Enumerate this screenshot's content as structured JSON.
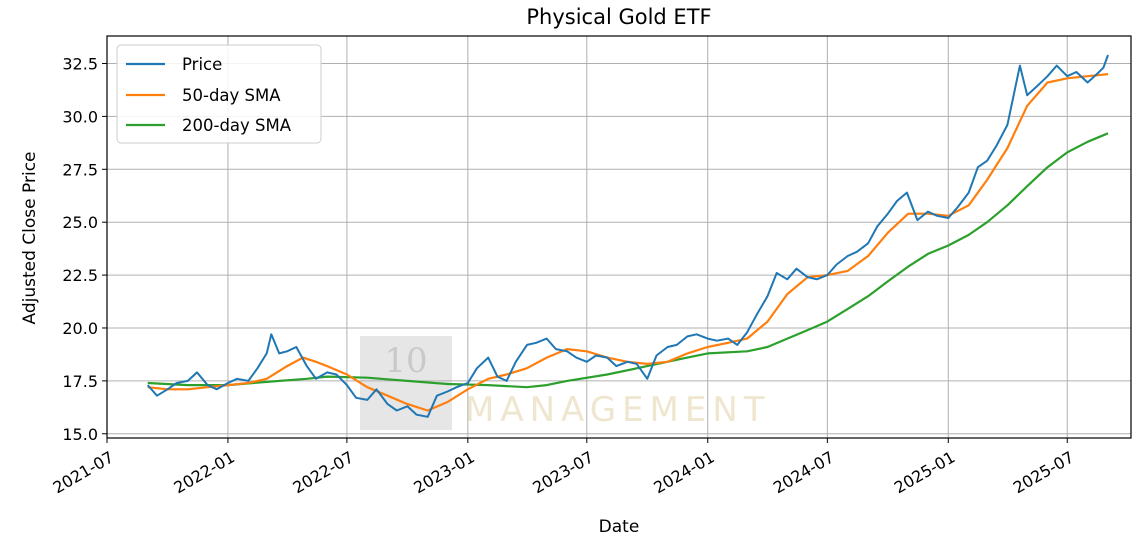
{
  "chart_data": {
    "type": "line",
    "title": "Physical Gold ETF",
    "xlabel": "Date",
    "ylabel": "Adjusted Close Price",
    "xlim": [
      "2021-07-01",
      "2025-10-06"
    ],
    "ylim": [
      14.8,
      33.8
    ],
    "x_ticks": [
      "2021-07",
      "2022-01",
      "2022-07",
      "2023-01",
      "2023-07",
      "2024-01",
      "2024-07",
      "2025-01",
      "2025-07"
    ],
    "y_ticks": [
      "15.0",
      "17.5",
      "20.0",
      "22.5",
      "25.0",
      "27.5",
      "30.0",
      "32.5"
    ],
    "grid": true,
    "legend_position": "upper-left",
    "series": [
      {
        "name": "Price",
        "color": "#1f77b4",
        "points": [
          [
            "2021-09-01",
            17.3
          ],
          [
            "2021-09-15",
            16.8
          ],
          [
            "2021-10-01",
            17.1
          ],
          [
            "2021-10-15",
            17.4
          ],
          [
            "2021-11-01",
            17.5
          ],
          [
            "2021-11-15",
            17.9
          ],
          [
            "2021-12-01",
            17.3
          ],
          [
            "2021-12-15",
            17.1
          ],
          [
            "2022-01-01",
            17.4
          ],
          [
            "2022-01-15",
            17.6
          ],
          [
            "2022-02-01",
            17.5
          ],
          [
            "2022-02-15",
            18.1
          ],
          [
            "2022-03-01",
            18.8
          ],
          [
            "2022-03-08",
            19.7
          ],
          [
            "2022-03-20",
            18.8
          ],
          [
            "2022-04-01",
            18.9
          ],
          [
            "2022-04-15",
            19.1
          ],
          [
            "2022-05-01",
            18.2
          ],
          [
            "2022-05-15",
            17.6
          ],
          [
            "2022-06-01",
            17.9
          ],
          [
            "2022-06-15",
            17.8
          ],
          [
            "2022-07-01",
            17.3
          ],
          [
            "2022-07-15",
            16.7
          ],
          [
            "2022-08-01",
            16.6
          ],
          [
            "2022-08-15",
            17.1
          ],
          [
            "2022-09-01",
            16.4
          ],
          [
            "2022-09-15",
            16.1
          ],
          [
            "2022-10-01",
            16.3
          ],
          [
            "2022-10-15",
            15.9
          ],
          [
            "2022-11-01",
            15.8
          ],
          [
            "2022-11-15",
            16.8
          ],
          [
            "2022-12-01",
            17.0
          ],
          [
            "2022-12-15",
            17.2
          ],
          [
            "2023-01-01",
            17.4
          ],
          [
            "2023-01-15",
            18.1
          ],
          [
            "2023-02-01",
            18.6
          ],
          [
            "2023-02-15",
            17.7
          ],
          [
            "2023-03-01",
            17.5
          ],
          [
            "2023-03-15",
            18.4
          ],
          [
            "2023-04-01",
            19.2
          ],
          [
            "2023-04-15",
            19.3
          ],
          [
            "2023-05-01",
            19.5
          ],
          [
            "2023-05-15",
            19.0
          ],
          [
            "2023-06-01",
            18.9
          ],
          [
            "2023-06-15",
            18.6
          ],
          [
            "2023-07-01",
            18.4
          ],
          [
            "2023-07-15",
            18.7
          ],
          [
            "2023-08-01",
            18.6
          ],
          [
            "2023-08-15",
            18.2
          ],
          [
            "2023-09-01",
            18.4
          ],
          [
            "2023-09-15",
            18.3
          ],
          [
            "2023-10-01",
            17.6
          ],
          [
            "2023-10-15",
            18.7
          ],
          [
            "2023-11-01",
            19.1
          ],
          [
            "2023-11-15",
            19.2
          ],
          [
            "2023-12-01",
            19.6
          ],
          [
            "2023-12-15",
            19.7
          ],
          [
            "2024-01-01",
            19.5
          ],
          [
            "2024-01-15",
            19.4
          ],
          [
            "2024-02-01",
            19.5
          ],
          [
            "2024-02-15",
            19.2
          ],
          [
            "2024-03-01",
            19.8
          ],
          [
            "2024-03-15",
            20.6
          ],
          [
            "2024-04-01",
            21.5
          ],
          [
            "2024-04-15",
            22.6
          ],
          [
            "2024-05-01",
            22.3
          ],
          [
            "2024-05-15",
            22.8
          ],
          [
            "2024-06-01",
            22.4
          ],
          [
            "2024-06-15",
            22.3
          ],
          [
            "2024-07-01",
            22.5
          ],
          [
            "2024-07-15",
            23.0
          ],
          [
            "2024-08-01",
            23.4
          ],
          [
            "2024-08-15",
            23.6
          ],
          [
            "2024-09-01",
            24.0
          ],
          [
            "2024-09-15",
            24.8
          ],
          [
            "2024-10-01",
            25.4
          ],
          [
            "2024-10-15",
            26.0
          ],
          [
            "2024-10-30",
            26.4
          ],
          [
            "2024-11-15",
            25.1
          ],
          [
            "2024-12-01",
            25.5
          ],
          [
            "2024-12-15",
            25.3
          ],
          [
            "2025-01-01",
            25.2
          ],
          [
            "2025-01-15",
            25.7
          ],
          [
            "2025-02-01",
            26.4
          ],
          [
            "2025-02-15",
            27.6
          ],
          [
            "2025-03-01",
            27.9
          ],
          [
            "2025-03-15",
            28.6
          ],
          [
            "2025-04-01",
            29.6
          ],
          [
            "2025-04-20",
            32.4
          ],
          [
            "2025-05-01",
            31.0
          ],
          [
            "2025-05-15",
            31.4
          ],
          [
            "2025-06-01",
            31.9
          ],
          [
            "2025-06-15",
            32.4
          ],
          [
            "2025-07-01",
            31.9
          ],
          [
            "2025-07-15",
            32.1
          ],
          [
            "2025-08-01",
            31.6
          ],
          [
            "2025-08-15",
            32.0
          ],
          [
            "2025-08-25",
            32.3
          ],
          [
            "2025-09-01",
            32.9
          ]
        ]
      },
      {
        "name": "50-day SMA",
        "color": "#ff7f0e",
        "points": [
          [
            "2021-09-01",
            17.2
          ],
          [
            "2021-10-01",
            17.1
          ],
          [
            "2021-11-01",
            17.1
          ],
          [
            "2021-12-01",
            17.2
          ],
          [
            "2022-01-01",
            17.3
          ],
          [
            "2022-02-01",
            17.4
          ],
          [
            "2022-03-01",
            17.6
          ],
          [
            "2022-04-01",
            18.2
          ],
          [
            "2022-04-25",
            18.6
          ],
          [
            "2022-05-15",
            18.4
          ],
          [
            "2022-06-01",
            18.2
          ],
          [
            "2022-07-01",
            17.8
          ],
          [
            "2022-08-01",
            17.2
          ],
          [
            "2022-09-01",
            16.8
          ],
          [
            "2022-10-01",
            16.4
          ],
          [
            "2022-11-01",
            16.1
          ],
          [
            "2022-12-01",
            16.5
          ],
          [
            "2023-01-01",
            17.1
          ],
          [
            "2023-02-01",
            17.6
          ],
          [
            "2023-03-01",
            17.8
          ],
          [
            "2023-04-01",
            18.1
          ],
          [
            "2023-05-01",
            18.6
          ],
          [
            "2023-06-01",
            19.0
          ],
          [
            "2023-07-01",
            18.9
          ],
          [
            "2023-08-01",
            18.6
          ],
          [
            "2023-09-01",
            18.4
          ],
          [
            "2023-10-01",
            18.3
          ],
          [
            "2023-11-01",
            18.4
          ],
          [
            "2023-12-01",
            18.8
          ],
          [
            "2024-01-01",
            19.1
          ],
          [
            "2024-02-01",
            19.3
          ],
          [
            "2024-03-01",
            19.5
          ],
          [
            "2024-04-01",
            20.3
          ],
          [
            "2024-05-01",
            21.6
          ],
          [
            "2024-06-01",
            22.4
          ],
          [
            "2024-07-01",
            22.5
          ],
          [
            "2024-08-01",
            22.7
          ],
          [
            "2024-09-01",
            23.4
          ],
          [
            "2024-10-01",
            24.5
          ],
          [
            "2024-11-01",
            25.4
          ],
          [
            "2024-12-01",
            25.4
          ],
          [
            "2025-01-01",
            25.3
          ],
          [
            "2025-02-01",
            25.8
          ],
          [
            "2025-03-01",
            27.0
          ],
          [
            "2025-04-01",
            28.5
          ],
          [
            "2025-05-01",
            30.5
          ],
          [
            "2025-06-01",
            31.6
          ],
          [
            "2025-07-01",
            31.8
          ],
          [
            "2025-08-01",
            31.9
          ],
          [
            "2025-09-01",
            32.0
          ]
        ]
      },
      {
        "name": "200-day SMA",
        "color": "#2ca02c",
        "points": [
          [
            "2021-09-01",
            17.4
          ],
          [
            "2021-11-01",
            17.3
          ],
          [
            "2022-01-01",
            17.3
          ],
          [
            "2022-03-01",
            17.45
          ],
          [
            "2022-05-01",
            17.6
          ],
          [
            "2022-06-01",
            17.7
          ],
          [
            "2022-08-01",
            17.65
          ],
          [
            "2022-10-01",
            17.5
          ],
          [
            "2022-12-01",
            17.35
          ],
          [
            "2023-02-01",
            17.3
          ],
          [
            "2023-04-01",
            17.2
          ],
          [
            "2023-05-01",
            17.3
          ],
          [
            "2023-06-01",
            17.5
          ],
          [
            "2023-08-01",
            17.8
          ],
          [
            "2023-10-01",
            18.2
          ],
          [
            "2023-12-01",
            18.6
          ],
          [
            "2024-01-01",
            18.8
          ],
          [
            "2024-03-01",
            18.9
          ],
          [
            "2024-04-01",
            19.1
          ],
          [
            "2024-05-01",
            19.5
          ],
          [
            "2024-06-01",
            19.9
          ],
          [
            "2024-07-01",
            20.3
          ],
          [
            "2024-08-01",
            20.9
          ],
          [
            "2024-09-01",
            21.5
          ],
          [
            "2024-10-01",
            22.2
          ],
          [
            "2024-11-01",
            22.9
          ],
          [
            "2024-12-01",
            23.5
          ],
          [
            "2025-01-01",
            23.9
          ],
          [
            "2025-02-01",
            24.4
          ],
          [
            "2025-03-01",
            25.0
          ],
          [
            "2025-04-01",
            25.8
          ],
          [
            "2025-05-01",
            26.7
          ],
          [
            "2025-06-01",
            27.6
          ],
          [
            "2025-07-01",
            28.3
          ],
          [
            "2025-08-01",
            28.8
          ],
          [
            "2025-09-01",
            29.2
          ]
        ]
      }
    ]
  },
  "watermark": {
    "number": "10",
    "text": "MANAGEMENT"
  }
}
